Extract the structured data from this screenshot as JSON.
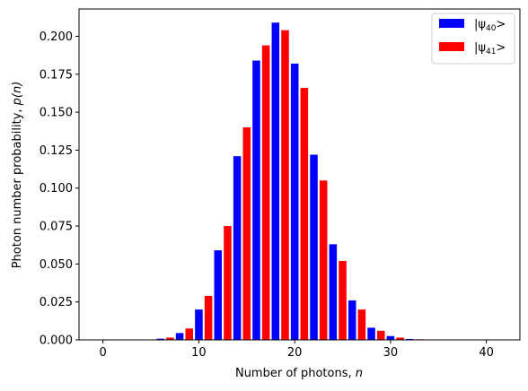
{
  "chart_data": {
    "type": "bar",
    "title": "",
    "xlabel_main": "Number of photons, ",
    "xlabel_var": "n",
    "ylabel_main": "Photon number probability, ",
    "ylabel_var": "p(n)",
    "xlim": [
      -2.5,
      43.5
    ],
    "ylim": [
      0,
      0.218
    ],
    "xticks": [
      0,
      10,
      20,
      30,
      40
    ],
    "yticks": [
      0.0,
      0.025,
      0.05,
      0.075,
      0.1,
      0.125,
      0.15,
      0.175,
      0.2
    ],
    "ytick_labels": [
      "0.000",
      "0.025",
      "0.050",
      "0.075",
      "0.100",
      "0.125",
      "0.150",
      "0.175",
      "0.200"
    ],
    "xtick_labels": [
      "0",
      "10",
      "20",
      "30",
      "40"
    ],
    "grid": false,
    "legend_position": "top-right",
    "series": [
      {
        "name_prefix": "|ψ",
        "name_sub": "40",
        "name_suffix": ">",
        "color": "#0000ff",
        "x": [
          0,
          2,
          4,
          6,
          8,
          10,
          12,
          14,
          16,
          18,
          20,
          22,
          24,
          26,
          28,
          30,
          32,
          34,
          36,
          38,
          40
        ],
        "values": [
          0.0,
          0.0,
          0.0,
          0.0008,
          0.0045,
          0.02,
          0.059,
          0.121,
          0.184,
          0.209,
          0.182,
          0.122,
          0.063,
          0.026,
          0.008,
          0.0025,
          0.0006,
          0.0001,
          0.0,
          0.0,
          0.0
        ]
      },
      {
        "name_prefix": "|ψ",
        "name_sub": "41",
        "name_suffix": ">",
        "color": "#ff0000",
        "x": [
          1,
          3,
          5,
          7,
          9,
          11,
          13,
          15,
          17,
          19,
          21,
          23,
          25,
          27,
          29,
          31,
          33,
          35,
          37,
          39,
          41
        ],
        "values": [
          0.0,
          0.0,
          0.0,
          0.0015,
          0.0075,
          0.029,
          0.075,
          0.14,
          0.194,
          0.204,
          0.166,
          0.105,
          0.052,
          0.02,
          0.006,
          0.0015,
          0.0004,
          0.0,
          0.0,
          0.0,
          0.0
        ]
      }
    ]
  }
}
